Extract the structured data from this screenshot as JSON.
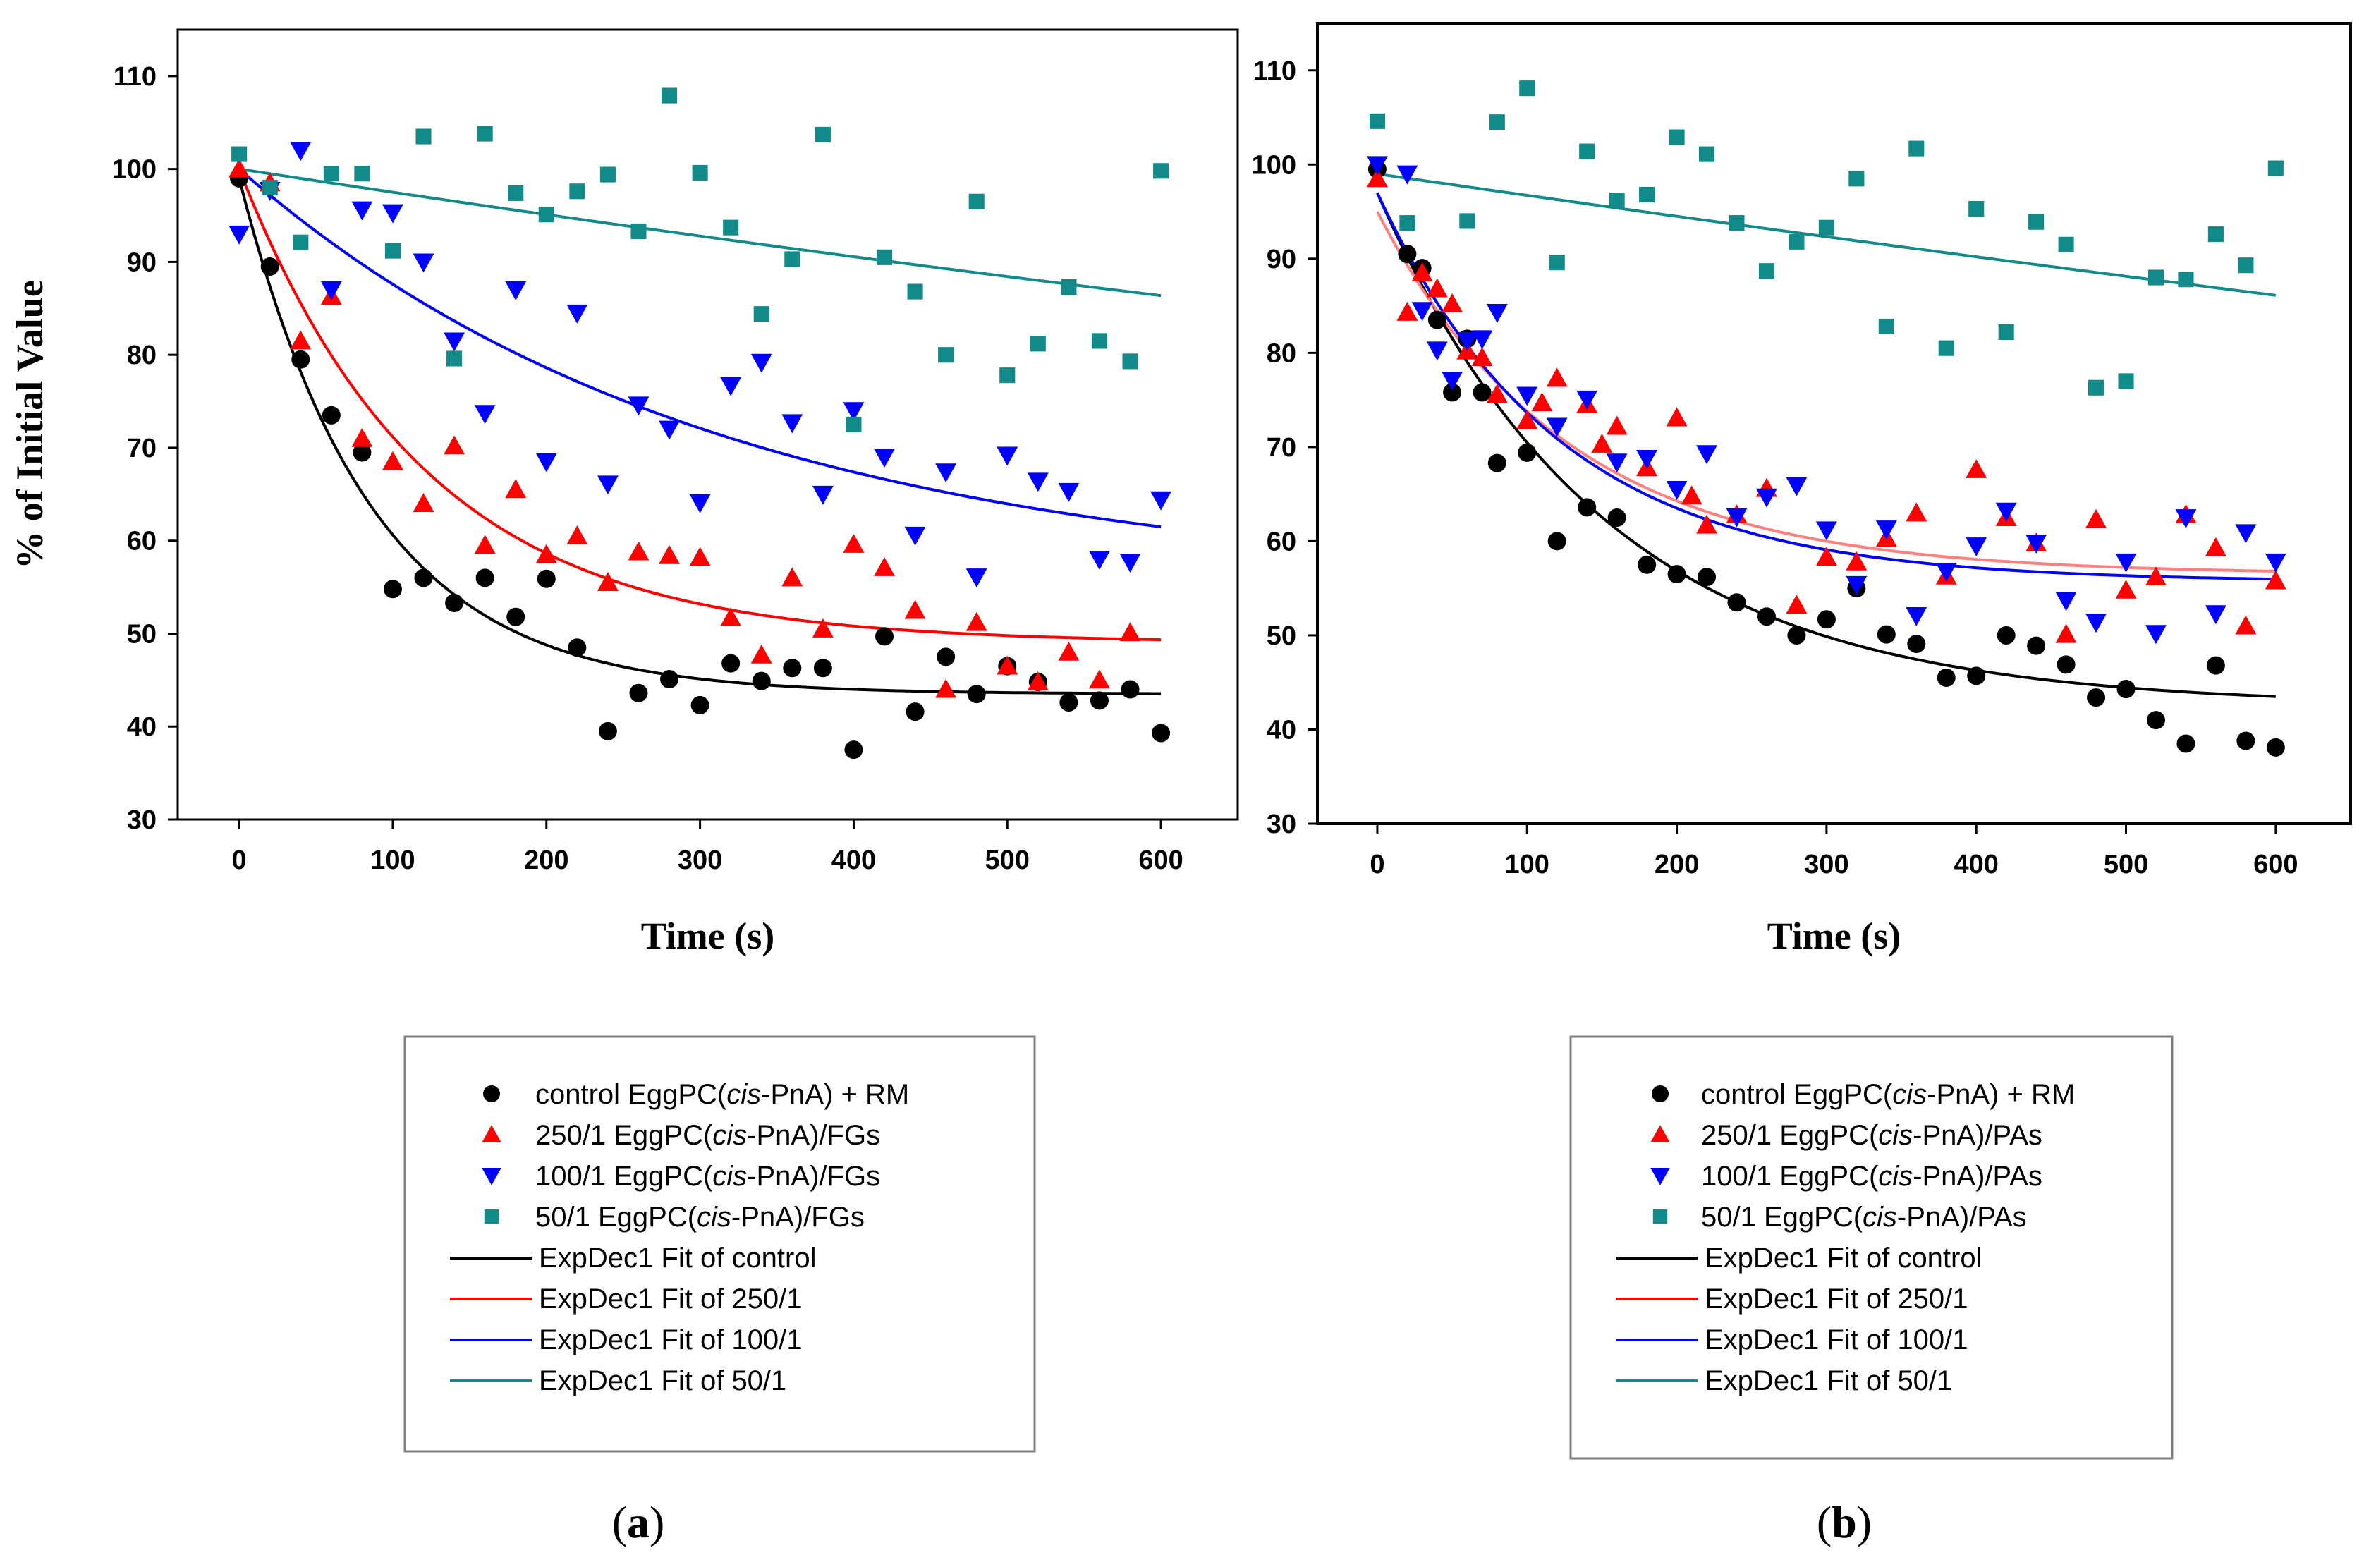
{
  "chart_data": [
    {
      "type": "scatter",
      "panel": "a",
      "panel_label_open": "(",
      "panel_label_letter": "a",
      "panel_label_close": ")",
      "xlabel": "Time (s)",
      "ylabel": "% of Initial Value",
      "xlim": [
        -40,
        650
      ],
      "ylim": [
        30,
        115
      ],
      "xticks": [
        0,
        100,
        200,
        300,
        400,
        500,
        600
      ],
      "yticks": [
        30,
        40,
        50,
        60,
        70,
        80,
        90,
        100,
        110
      ],
      "series": [
        {
          "name": "control",
          "marker": "circle",
          "color": "#000000",
          "x": [
            0,
            20,
            40,
            60,
            80,
            100,
            120,
            140,
            160,
            180,
            200,
            220,
            240,
            260,
            280,
            300,
            320,
            340,
            360,
            380,
            400,
            420,
            440,
            460,
            480,
            500,
            520,
            540,
            560,
            580,
            600
          ],
          "y": [
            99,
            89.5,
            79.5,
            73.5,
            69.5,
            54.8,
            56,
            53.3,
            56,
            51.8,
            55.9,
            48.5,
            39.5,
            43.6,
            45.1,
            42.3,
            46.8,
            44.9,
            46.3,
            46.3,
            37.5,
            49.7,
            41.6,
            47.5,
            43.5,
            46.5,
            44.8,
            42.6,
            42.8,
            44,
            39.3
          ]
        },
        {
          "name": "250/1",
          "marker": "triangle-up",
          "color": "#ff0000",
          "x": [
            0,
            20,
            40,
            60,
            80,
            100,
            120,
            140,
            160,
            180,
            200,
            220,
            240,
            260,
            280,
            300,
            320,
            340,
            360,
            380,
            400,
            420,
            440,
            460,
            480,
            500,
            520,
            540,
            560,
            580
          ],
          "y": [
            100,
            98.5,
            81.5,
            86.3,
            71,
            68.5,
            64,
            70.2,
            59.5,
            65.5,
            58.5,
            60.5,
            55.5,
            58.8,
            58.4,
            58.2,
            51.7,
            47.7,
            56,
            50.5,
            59.6,
            57.1,
            52.5,
            44,
            51.2,
            46.5,
            44.8,
            48,
            45,
            50.1
          ]
        },
        {
          "name": "100/1",
          "marker": "triangle-down",
          "color": "#0000ff",
          "x": [
            0,
            20,
            40,
            60,
            80,
            100,
            120,
            140,
            160,
            180,
            200,
            220,
            240,
            260,
            280,
            300,
            320,
            340,
            360,
            380,
            400,
            420,
            440,
            460,
            480,
            500,
            520,
            540,
            560,
            580,
            600
          ],
          "y": [
            93,
            97.7,
            102,
            87,
            95.6,
            95.3,
            90,
            81.5,
            73.7,
            87,
            68.5,
            84.5,
            66.1,
            74.6,
            72,
            64.1,
            76.7,
            79.2,
            72.7,
            65,
            74,
            69,
            60.6,
            67.4,
            56.1,
            69.2,
            66.4,
            65.3,
            58,
            57.7,
            64.4
          ]
        },
        {
          "name": "50/1",
          "marker": "square",
          "color": "#138a8a",
          "x": [
            0,
            20,
            40,
            60,
            80,
            100,
            120,
            140,
            160,
            180,
            200,
            220,
            240,
            260,
            280,
            300,
            320,
            340,
            360,
            380,
            400,
            420,
            440,
            460,
            480,
            500,
            520,
            540,
            560,
            580,
            600
          ],
          "y": [
            101.6,
            98,
            92.1,
            99.5,
            99.5,
            91.2,
            103.5,
            79.6,
            103.8,
            97.4,
            95.1,
            97.6,
            99.4,
            93.3,
            107.9,
            99.6,
            93.7,
            84.4,
            90.3,
            103.7,
            72.5,
            90.5,
            86.8,
            80,
            96.5,
            77.8,
            81.2,
            87.3,
            81.5,
            79.3,
            99.8
          ]
        }
      ],
      "fits": [
        {
          "name": "ExpDec1 Fit of control",
          "color": "#000000",
          "y0": 43.5,
          "A": 55.5,
          "t": 85,
          "x_range": [
            0,
            600
          ]
        },
        {
          "name": "ExpDec1 Fit of 250/1",
          "color": "#ff0000",
          "y0": 49.0,
          "A": 51.0,
          "t": 120,
          "x_range": [
            0,
            600
          ]
        },
        {
          "name": "ExpDec1 Fit of 100/1",
          "color": "#0000ff",
          "y0": 55.0,
          "A": 45.0,
          "t": 310,
          "x_range": [
            0,
            600
          ]
        },
        {
          "name": "ExpDec1 Fit of 50/1",
          "color": "#138a8a",
          "y0": 35.0,
          "A": 65.0,
          "t": 2550,
          "x_range": [
            0,
            600
          ]
        }
      ],
      "legend": {
        "position": "below",
        "entries": [
          {
            "marker": "circle",
            "color": "#000000",
            "text_before": "control EggPC(",
            "text_italic": "cis",
            "text_after": "-PnA) + RM"
          },
          {
            "marker": "triangle-up",
            "color": "#ff0000",
            "text_before": "250/1 EggPC(",
            "text_italic": "cis",
            "text_after": "-PnA)/FGs"
          },
          {
            "marker": "triangle-down",
            "color": "#0000ff",
            "text_before": "100/1 EggPC(",
            "text_italic": "cis",
            "text_after": "-PnA)/FGs"
          },
          {
            "marker": "square",
            "color": "#138a8a",
            "text_before": "50/1 EggPC(",
            "text_italic": "cis",
            "text_after": "-PnA)/FGs"
          },
          {
            "marker": "line",
            "color": "#000000",
            "text_before": "ExpDec1 Fit of control",
            "text_italic": "",
            "text_after": ""
          },
          {
            "marker": "line",
            "color": "#ff0000",
            "text_before": "ExpDec1 Fit of 250/1",
            "text_italic": "",
            "text_after": ""
          },
          {
            "marker": "line",
            "color": "#0000ff",
            "text_before": "ExpDec1 Fit of 100/1",
            "text_italic": "",
            "text_after": ""
          },
          {
            "marker": "line",
            "color": "#138a8a",
            "text_before": "ExpDec1 Fit of 50/1",
            "text_italic": "",
            "text_after": ""
          }
        ]
      }
    },
    {
      "type": "scatter",
      "panel": "b",
      "panel_label_open": "(",
      "panel_label_letter": "b",
      "panel_label_close": ")",
      "xlabel": "Time (s)",
      "ylabel": "",
      "xlim": [
        -40,
        650
      ],
      "ylim": [
        30,
        115
      ],
      "xticks": [
        0,
        100,
        200,
        300,
        400,
        500,
        600
      ],
      "yticks": [
        30,
        40,
        50,
        60,
        70,
        80,
        90,
        100,
        110
      ],
      "series": [
        {
          "name": "control",
          "marker": "circle",
          "color": "#000000",
          "x": [
            0,
            20,
            30,
            40,
            50,
            60,
            70,
            80,
            100,
            120,
            140,
            160,
            180,
            200,
            220,
            240,
            260,
            280,
            300,
            320,
            340,
            360,
            380,
            400,
            420,
            440,
            460,
            480,
            500,
            520,
            540,
            560,
            580,
            600
          ],
          "y": [
            99.5,
            90.5,
            89,
            83.5,
            75.8,
            81.5,
            75.8,
            68.3,
            69.4,
            60,
            63.6,
            62.5,
            57.5,
            56.5,
            56.2,
            53.5,
            52,
            50,
            51.7,
            55,
            50.1,
            49.1,
            45.5,
            45.7,
            50,
            48.9,
            46.9,
            43.4,
            44.3,
            41,
            38.5,
            46.8,
            38.8,
            38.1
          ]
        },
        {
          "name": "250/1",
          "marker": "triangle-up",
          "color": "#ff0000",
          "x": [
            0,
            20,
            30,
            40,
            50,
            60,
            70,
            80,
            100,
            110,
            120,
            140,
            150,
            160,
            180,
            200,
            210,
            220,
            240,
            260,
            280,
            300,
            320,
            340,
            360,
            380,
            400,
            420,
            440,
            460,
            480,
            500,
            520,
            540,
            560,
            580,
            600
          ],
          "y": [
            98.5,
            84.3,
            88.5,
            86.8,
            85.2,
            80.2,
            79.5,
            75.6,
            72.8,
            74.7,
            77.3,
            74.5,
            70.3,
            72.2,
            67.8,
            73.1,
            64.8,
            61.7,
            62.8,
            65.6,
            53.2,
            58.3,
            57.8,
            60.3,
            63,
            56.3,
            67.6,
            62.5,
            59.8,
            50.1,
            62.3,
            54.8,
            56.2,
            62.8,
            59.3,
            51,
            55.8
          ]
        },
        {
          "name": "100/1",
          "marker": "triangle-down",
          "color": "#0000ff",
          "x": [
            0,
            20,
            30,
            40,
            50,
            60,
            70,
            80,
            100,
            120,
            140,
            160,
            180,
            200,
            220,
            240,
            260,
            280,
            300,
            320,
            340,
            360,
            380,
            400,
            420,
            440,
            460,
            480,
            500,
            520,
            540,
            560,
            580,
            600
          ],
          "y": [
            100,
            99,
            84.5,
            80.3,
            77.1,
            81.3,
            81.5,
            84.3,
            75.5,
            72.2,
            75.1,
            68.4,
            68.8,
            65.5,
            69.3,
            62.6,
            64.7,
            65.9,
            61.2,
            55.4,
            61.3,
            52.1,
            56.8,
            59.5,
            63.2,
            59.8,
            53.7,
            51.4,
            57.8,
            50.2,
            62.5,
            52.3,
            60.9,
            57.8
          ]
        },
        {
          "name": "50/1",
          "marker": "square",
          "color": "#138a8a",
          "x": [
            0,
            20,
            60,
            80,
            100,
            120,
            140,
            160,
            180,
            200,
            220,
            240,
            260,
            280,
            300,
            320,
            340,
            360,
            380,
            400,
            420,
            440,
            460,
            480,
            500,
            520,
            540,
            560,
            580,
            600
          ],
          "y": [
            104.6,
            93.8,
            94,
            104.5,
            108.1,
            89.6,
            101.4,
            96.2,
            96.8,
            102.9,
            101.1,
            93.8,
            88.7,
            91.8,
            93.3,
            98.5,
            82.8,
            101.7,
            80.5,
            95.3,
            82.2,
            93.9,
            91.5,
            76.3,
            77,
            88,
            87.8,
            92.6,
            89.3,
            99.6
          ]
        }
      ],
      "fits": [
        {
          "name": "ExpDec1 Fit of control",
          "color": "#000000",
          "y0": 42.5,
          "A": 54.5,
          "t": 150,
          "x_range": [
            0,
            600
          ]
        },
        {
          "name": "ExpDec1 Fit of 250/1",
          "color": "#ff8080",
          "y0": 56.5,
          "A": 38.5,
          "t": 125,
          "x_range": [
            0,
            600
          ]
        },
        {
          "name": "ExpDec1 Fit of 100/1",
          "color": "#0000ff",
          "y0": 55.7,
          "A": 41.3,
          "t": 120,
          "x_range": [
            0,
            600
          ]
        },
        {
          "name": "ExpDec1 Fit of 50/1",
          "color": "#138a8a",
          "y0": 0.0,
          "A": 99.0,
          "t": 4300,
          "x_range": [
            0,
            600
          ]
        }
      ],
      "legend": {
        "position": "below",
        "entries": [
          {
            "marker": "circle",
            "color": "#000000",
            "text_before": "control EggPC(",
            "text_italic": "cis",
            "text_after": "-PnA) + RM"
          },
          {
            "marker": "triangle-up",
            "color": "#ff0000",
            "text_before": "250/1 EggPC(",
            "text_italic": "cis",
            "text_after": "-PnA)/PAs"
          },
          {
            "marker": "triangle-down",
            "color": "#0000ff",
            "text_before": "100/1 EggPC(",
            "text_italic": "cis",
            "text_after": "-PnA)/PAs"
          },
          {
            "marker": "square",
            "color": "#138a8a",
            "text_before": "50/1 EggPC(",
            "text_italic": "cis",
            "text_after": "-PnA)/PAs"
          },
          {
            "marker": "line",
            "color": "#000000",
            "text_before": "ExpDec1 Fit of control",
            "text_italic": "",
            "text_after": ""
          },
          {
            "marker": "line",
            "color": "#ff0000",
            "text_before": "ExpDec1 Fit of 250/1",
            "text_italic": "",
            "text_after": ""
          },
          {
            "marker": "line",
            "color": "#0000ff",
            "text_before": "ExpDec1 Fit of 100/1",
            "text_italic": "",
            "text_after": ""
          },
          {
            "marker": "line",
            "color": "#138a8a",
            "text_before": "ExpDec1 Fit of 50/1",
            "text_italic": "",
            "text_after": ""
          }
        ]
      }
    }
  ]
}
